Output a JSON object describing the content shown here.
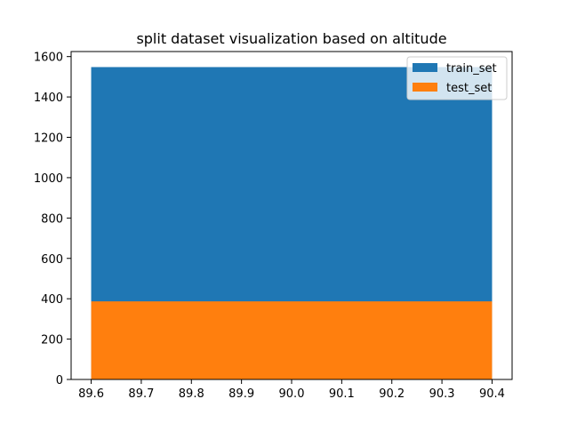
{
  "chart_data": {
    "type": "bar",
    "title": "split dataset visualization based on altitude",
    "xlabel": "",
    "ylabel": "",
    "xlim": [
      89.56,
      90.44
    ],
    "ylim": [
      0,
      1625
    ],
    "xticks": [
      "89.6",
      "89.7",
      "89.8",
      "89.9",
      "90.0",
      "90.1",
      "90.2",
      "90.3",
      "90.4"
    ],
    "yticks": [
      "0",
      "200",
      "400",
      "600",
      "800",
      "1000",
      "1200",
      "1400",
      "1600"
    ],
    "bin_edges": [
      89.6,
      90.4
    ],
    "series": [
      {
        "name": "train_set",
        "values": [
          1548
        ],
        "color": "#1f77b4"
      },
      {
        "name": "test_set",
        "values": [
          387
        ],
        "color": "#ff7f0e"
      }
    ],
    "grid": false,
    "legend_position": "top-right"
  }
}
